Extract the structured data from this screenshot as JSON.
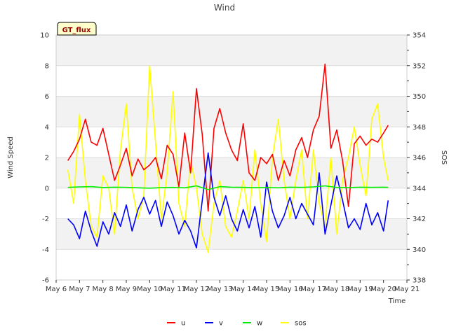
{
  "chart_data": {
    "type": "line",
    "title": "Wind",
    "tag": "GT_flux",
    "xlabel": "Time",
    "ylabel": "Wind Speed",
    "y2label": "SOS",
    "ylim": [
      -6,
      10
    ],
    "y2lim": [
      338,
      354
    ],
    "xlim": [
      6,
      21
    ],
    "yticks": [
      -6,
      -4,
      -2,
      0,
      2,
      4,
      6,
      8,
      10
    ],
    "y2ticks": [
      338,
      340,
      342,
      344,
      346,
      348,
      350,
      352,
      354
    ],
    "xticks": [
      6,
      7,
      8,
      9,
      10,
      11,
      12,
      13,
      14,
      15,
      16,
      17,
      18,
      19,
      20,
      21
    ],
    "xtick_labels": [
      "May 6",
      "May 7",
      "May 8",
      "May 9",
      "May 10",
      "May 11",
      "May 12",
      "May 13",
      "May 14",
      "May 15",
      "May 16",
      "May 17",
      "May 18",
      "May 19",
      "May 20",
      "May 21"
    ],
    "grid": true,
    "legend_position": "bottom-center",
    "series": [
      {
        "name": "u",
        "color": "#ff0000",
        "axis": "left",
        "x": [
          6.5,
          6.75,
          7.0,
          7.25,
          7.5,
          7.75,
          8.0,
          8.25,
          8.5,
          8.75,
          9.0,
          9.25,
          9.5,
          9.75,
          10.0,
          10.25,
          10.5,
          10.75,
          11.0,
          11.25,
          11.5,
          11.75,
          12.0,
          12.25,
          12.5,
          12.75,
          13.0,
          13.25,
          13.5,
          13.75,
          14.0,
          14.25,
          14.5,
          14.75,
          15.0,
          15.25,
          15.5,
          15.75,
          16.0,
          16.25,
          16.5,
          16.75,
          17.0,
          17.25,
          17.5,
          17.75,
          18.0,
          18.25,
          18.5,
          18.75,
          19.0,
          19.25,
          19.5,
          19.75,
          20.0,
          20.2
        ],
        "values": [
          1.8,
          2.4,
          3.2,
          4.5,
          3.0,
          2.8,
          3.9,
          2.2,
          0.5,
          1.5,
          2.6,
          0.8,
          1.9,
          1.2,
          1.5,
          2.0,
          0.6,
          2.8,
          2.2,
          0.1,
          3.6,
          1.0,
          6.5,
          3.5,
          -1.5,
          3.9,
          5.2,
          3.6,
          2.5,
          1.8,
          4.2,
          1.0,
          0.5,
          2.0,
          1.6,
          2.2,
          0.5,
          1.8,
          0.8,
          2.5,
          3.3,
          2.0,
          3.8,
          4.7,
          8.1,
          2.6,
          3.8,
          1.8,
          -1.2,
          2.9,
          3.4,
          2.8,
          3.2,
          3.0,
          3.6,
          4.1
        ]
      },
      {
        "name": "v",
        "color": "#0000ff",
        "axis": "left",
        "x": [
          6.5,
          6.75,
          7.0,
          7.25,
          7.5,
          7.75,
          8.0,
          8.25,
          8.5,
          8.75,
          9.0,
          9.25,
          9.5,
          9.75,
          10.0,
          10.25,
          10.5,
          10.75,
          11.0,
          11.25,
          11.5,
          11.75,
          12.0,
          12.25,
          12.5,
          12.75,
          13.0,
          13.25,
          13.5,
          13.75,
          14.0,
          14.25,
          14.5,
          14.75,
          15.0,
          15.25,
          15.5,
          15.75,
          16.0,
          16.25,
          16.5,
          16.75,
          17.0,
          17.25,
          17.5,
          17.75,
          18.0,
          18.25,
          18.5,
          18.75,
          19.0,
          19.25,
          19.5,
          19.75,
          20.0,
          20.2
        ],
        "values": [
          -2.0,
          -2.4,
          -3.3,
          -1.5,
          -2.8,
          -3.8,
          -2.2,
          -3.0,
          -1.6,
          -2.5,
          -1.1,
          -2.8,
          -1.4,
          -0.6,
          -1.7,
          -0.8,
          -2.5,
          -0.9,
          -1.8,
          -3.0,
          -2.1,
          -2.8,
          -3.9,
          -0.8,
          2.3,
          -0.6,
          -1.8,
          -0.5,
          -2.0,
          -2.8,
          -1.4,
          -2.6,
          -1.2,
          -3.2,
          0.4,
          -1.5,
          -2.6,
          -1.8,
          -0.6,
          -2.0,
          -1.0,
          -1.7,
          -2.4,
          1.0,
          -3.0,
          -1.1,
          0.8,
          -0.8,
          -2.6,
          -2.0,
          -2.7,
          -1.0,
          -2.4,
          -1.6,
          -2.8,
          -0.8
        ]
      },
      {
        "name": "w",
        "color": "#00ee00",
        "axis": "left",
        "x": [
          6.5,
          7.0,
          7.5,
          8.0,
          8.5,
          9.0,
          9.5,
          10.0,
          10.5,
          11.0,
          11.5,
          12.0,
          12.5,
          13.0,
          13.5,
          14.0,
          14.5,
          15.0,
          15.5,
          16.0,
          16.5,
          17.0,
          17.5,
          18.0,
          18.5,
          19.0,
          19.5,
          20.0,
          20.2
        ],
        "values": [
          0.05,
          0.08,
          0.1,
          0.04,
          0.06,
          0.05,
          0.02,
          0.0,
          0.03,
          0.05,
          0.02,
          0.15,
          -0.1,
          0.1,
          0.06,
          0.05,
          0.03,
          0.04,
          0.02,
          0.06,
          0.05,
          0.08,
          0.15,
          0.05,
          0.03,
          0.06,
          0.05,
          0.06,
          0.05
        ]
      },
      {
        "name": "sos",
        "color": "#ffff00",
        "axis": "right",
        "x": [
          6.5,
          6.75,
          7.0,
          7.25,
          7.5,
          7.75,
          8.0,
          8.25,
          8.5,
          8.75,
          9.0,
          9.25,
          9.5,
          9.75,
          10.0,
          10.25,
          10.5,
          10.75,
          11.0,
          11.25,
          11.5,
          11.75,
          12.0,
          12.25,
          12.5,
          12.75,
          13.0,
          13.25,
          13.5,
          13.75,
          14.0,
          14.25,
          14.5,
          14.75,
          15.0,
          15.25,
          15.5,
          15.75,
          16.0,
          16.25,
          16.5,
          16.75,
          17.0,
          17.25,
          17.5,
          17.75,
          18.0,
          18.25,
          18.5,
          18.75,
          19.0,
          19.25,
          19.5,
          19.75,
          20.0,
          20.2
        ],
        "values": [
          345.2,
          343.0,
          348.8,
          344.5,
          341.5,
          340.8,
          344.8,
          344.0,
          341.0,
          346.5,
          349.5,
          344.0,
          342.0,
          343.5,
          352.0,
          347.0,
          342.0,
          345.0,
          350.3,
          343.0,
          341.5,
          345.8,
          344.0,
          341.0,
          339.8,
          343.0,
          344.5,
          341.5,
          340.8,
          342.5,
          344.5,
          342.0,
          346.5,
          343.0,
          340.5,
          346.0,
          348.5,
          344.5,
          342.0,
          344.5,
          346.5,
          342.0,
          346.5,
          343.0,
          341.5,
          346.0,
          341.0,
          344.5,
          346.0,
          348.0,
          345.5,
          343.5,
          348.5,
          349.5,
          346.0,
          344.5
        ]
      }
    ]
  }
}
